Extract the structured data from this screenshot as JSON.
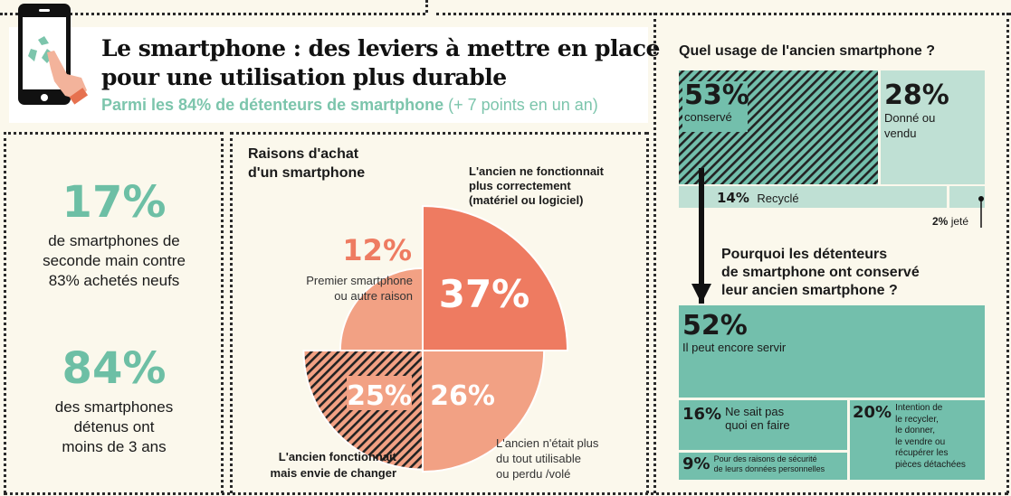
{
  "header": {
    "title_line1": "Le smartphone : des leviers à mettre en place",
    "title_line2": "pour une utilisation plus durable",
    "subtitle_bold": "Parmi les 84% de détenteurs de smartphone",
    "subtitle_light": "(+ 7 points en un an)",
    "icon": "smartphone-recycle-touch-icon"
  },
  "left": {
    "stat1_value": "17%",
    "stat1_text": [
      "de smartphones de",
      "seconde main contre",
      "83% achetés neufs"
    ],
    "stat2_value": "84%",
    "stat2_text": [
      "des smartphones",
      "détenus ont",
      "moins de 3 ans"
    ]
  },
  "colors": {
    "green": "#6dbfa5",
    "green_dark": "#73bfac",
    "green_light": "#bfe0d4",
    "salmon": "#ee7b61",
    "salmon_light": "#f2a184",
    "background": "#fbf8ec"
  },
  "chart_data": [
    {
      "type": "pie",
      "title": "Raisons d'achat d'un smartphone",
      "slices": [
        {
          "label": "L'ancien ne fonctionnait plus correctement (matériel ou logiciel)",
          "value": 37,
          "display": "37%"
        },
        {
          "label": "L'ancien n'était plus du tout utilisable ou perdu /volé",
          "value": 26,
          "display": "26%"
        },
        {
          "label": "L'ancien fonctionnait mais envie de changer",
          "value": 25,
          "display": "25%",
          "hatched": true
        },
        {
          "label": "Premier smartphone ou autre raison",
          "value": 12,
          "display": "12%"
        }
      ]
    },
    {
      "type": "treemap",
      "title": "Quel usage de l'ancien smartphone ?",
      "items": [
        {
          "label": "conservé",
          "value": 53,
          "display": "53%",
          "hatched": true
        },
        {
          "label": "Donné ou vendu",
          "value": 28,
          "display": "28%"
        },
        {
          "label": "Recyclé",
          "value": 14,
          "display": "14%"
        },
        {
          "label": "jeté",
          "value": 2,
          "display": "2%"
        }
      ]
    },
    {
      "type": "treemap",
      "title": "Pourquoi les détenteurs de smartphone ont conservé leur ancien smartphone ?",
      "items": [
        {
          "label": "Il peut encore servir",
          "value": 52,
          "display": "52%"
        },
        {
          "label": "Ne sait pas quoi en faire",
          "value": 16,
          "display": "16%"
        },
        {
          "label": "Pour des raisons de sécurité de leurs données personnelles",
          "value": 9,
          "display": "9%"
        },
        {
          "label": "Intention de le recycler, le donner, le vendre ou récupérer les pièces détachées",
          "value": 20,
          "display": "20%"
        }
      ]
    }
  ],
  "pie_text": {
    "title1": "Raisons d'achat",
    "title2": "d'un smartphone",
    "l37": [
      "L'ancien ne fonctionnait",
      "plus correctement",
      "(matériel ou logiciel)"
    ],
    "l12": [
      "Premier smartphone",
      "ou autre raison"
    ],
    "l25": [
      "L'ancien fonctionnait",
      "mais envie de changer"
    ],
    "l26": [
      "L'ancien n'était plus",
      "du tout utilisable",
      "ou perdu /volé"
    ]
  },
  "usage_text": {
    "q2_lines": [
      "Pourquoi les détenteurs",
      "de smartphone ont conservé",
      "leur ancien smartphone ?"
    ],
    "donne_lines": [
      "Donné ou",
      "vendu"
    ],
    "n16_lines": [
      "Ne sait pas",
      "quoi en faire"
    ],
    "n9_lines": [
      "Pour des raisons de sécurité",
      "de leurs données personnelles"
    ],
    "n20_lines": [
      "Intention de",
      "le recycler,",
      "le donner,",
      "le vendre ou",
      "récupérer les",
      "pièces détachées"
    ]
  }
}
